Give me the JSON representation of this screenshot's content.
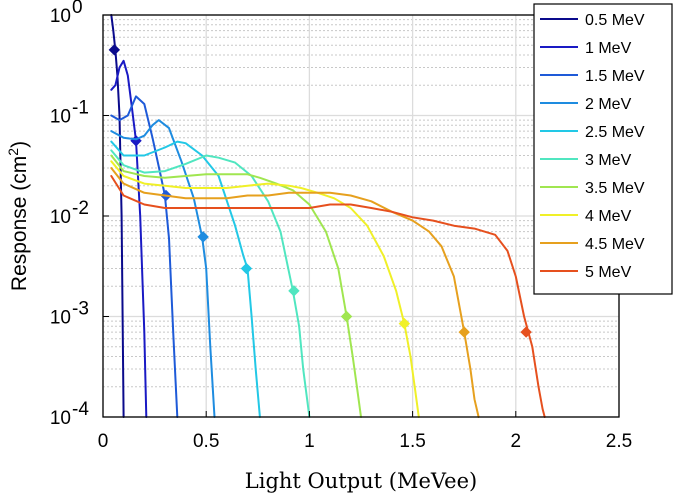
{
  "chart_data": {
    "type": "line",
    "title": "",
    "xlabel": "Light Output (MeVee)",
    "ylabel_main": "Response (cm",
    "ylabel_sup": "2",
    "ylabel_close": ")",
    "xlim": [
      0,
      2.5
    ],
    "ylim": [
      0.0001,
      1
    ],
    "y_scale": "log",
    "grid": true,
    "minor_grid": true,
    "legend_position": "top-right",
    "x_ticks": [
      {
        "value": 0,
        "label": "0"
      },
      {
        "value": 0.5,
        "label": "0.5"
      },
      {
        "value": 1,
        "label": "1"
      },
      {
        "value": 1.5,
        "label": "1.5"
      },
      {
        "value": 2,
        "label": "2"
      },
      {
        "value": 2.5,
        "label": "2.5"
      }
    ],
    "y_ticks": [
      {
        "value": 1,
        "base": "10",
        "exp": "0"
      },
      {
        "value": 0.1,
        "base": "10",
        "exp": "-1"
      },
      {
        "value": 0.01,
        "base": "10",
        "exp": "-2"
      },
      {
        "value": 0.001,
        "base": "10",
        "exp": "-3"
      },
      {
        "value": 0.0001,
        "base": "10",
        "exp": "-4"
      }
    ],
    "series": [
      {
        "name": "0.5 MeV",
        "color": "#0a0a8c",
        "x": [
          0.04,
          0.05,
          0.06,
          0.07,
          0.08,
          0.09,
          0.1
        ],
        "y": [
          1.0,
          0.7,
          0.44,
          0.25,
          0.1,
          0.01,
          0.0001
        ],
        "marker": [
          0.055,
          0.45
        ]
      },
      {
        "name": "1 MeV",
        "color": "#1a1ac4",
        "x": [
          0.04,
          0.06,
          0.08,
          0.1,
          0.12,
          0.14,
          0.16,
          0.18,
          0.2,
          0.21
        ],
        "y": [
          0.18,
          0.2,
          0.3,
          0.35,
          0.25,
          0.12,
          0.056,
          0.01,
          0.0007,
          0.0001
        ],
        "marker": [
          0.16,
          0.056
        ]
      },
      {
        "name": "1.5 MeV",
        "color": "#1e5ad8",
        "x": [
          0.04,
          0.08,
          0.12,
          0.16,
          0.2,
          0.24,
          0.28,
          0.3,
          0.32,
          0.34,
          0.36
        ],
        "y": [
          0.1,
          0.09,
          0.1,
          0.155,
          0.13,
          0.06,
          0.025,
          0.016,
          0.006,
          0.0007,
          0.0001
        ],
        "marker": [
          0.305,
          0.016
        ]
      },
      {
        "name": "2 MeV",
        "color": "#1e8ce0",
        "x": [
          0.04,
          0.1,
          0.16,
          0.2,
          0.24,
          0.27,
          0.32,
          0.38,
          0.44,
          0.48,
          0.5,
          0.52,
          0.54
        ],
        "y": [
          0.07,
          0.06,
          0.058,
          0.063,
          0.08,
          0.09,
          0.075,
          0.035,
          0.015,
          0.0062,
          0.003,
          0.0005,
          0.0001
        ],
        "marker": [
          0.485,
          0.0062
        ]
      },
      {
        "name": "2.5 MeV",
        "color": "#22c8e6",
        "x": [
          0.04,
          0.1,
          0.2,
          0.3,
          0.36,
          0.4,
          0.48,
          0.56,
          0.64,
          0.68,
          0.7,
          0.72,
          0.74,
          0.76
        ],
        "y": [
          0.055,
          0.04,
          0.04,
          0.048,
          0.055,
          0.053,
          0.04,
          0.025,
          0.008,
          0.004,
          0.003,
          0.001,
          0.0003,
          0.0001
        ],
        "marker": [
          0.695,
          0.003
        ]
      },
      {
        "name": "3 MeV",
        "color": "#50e6c0",
        "x": [
          0.04,
          0.1,
          0.2,
          0.3,
          0.4,
          0.5,
          0.56,
          0.64,
          0.72,
          0.8,
          0.86,
          0.92,
          0.95,
          0.97,
          1.0
        ],
        "y": [
          0.045,
          0.032,
          0.027,
          0.028,
          0.033,
          0.04,
          0.038,
          0.034,
          0.025,
          0.014,
          0.007,
          0.0018,
          0.0008,
          0.0003,
          0.0001
        ],
        "marker": [
          0.925,
          0.0018
        ]
      },
      {
        "name": "3.5 MeV",
        "color": "#a0e650",
        "x": [
          0.04,
          0.1,
          0.2,
          0.3,
          0.4,
          0.5,
          0.6,
          0.7,
          0.76,
          0.84,
          0.92,
          1.0,
          1.08,
          1.14,
          1.18,
          1.21,
          1.23,
          1.25
        ],
        "y": [
          0.04,
          0.028,
          0.025,
          0.024,
          0.025,
          0.026,
          0.026,
          0.026,
          0.024,
          0.021,
          0.018,
          0.013,
          0.007,
          0.003,
          0.001,
          0.0004,
          0.0002,
          0.0001
        ],
        "marker": [
          1.18,
          0.001
        ]
      },
      {
        "name": "4 MeV",
        "color": "#f0f028",
        "x": [
          0.04,
          0.1,
          0.2,
          0.3,
          0.4,
          0.5,
          0.6,
          0.7,
          0.8,
          0.9,
          0.96,
          1.04,
          1.12,
          1.2,
          1.28,
          1.36,
          1.42,
          1.46,
          1.49,
          1.51,
          1.53
        ],
        "y": [
          0.035,
          0.025,
          0.021,
          0.02,
          0.019,
          0.019,
          0.019,
          0.02,
          0.021,
          0.02,
          0.019,
          0.017,
          0.015,
          0.012,
          0.008,
          0.004,
          0.0018,
          0.00085,
          0.0004,
          0.0002,
          0.0001
        ],
        "marker": [
          1.46,
          0.00085
        ]
      },
      {
        "name": "4.5 MeV",
        "color": "#e6a01e",
        "x": [
          0.04,
          0.1,
          0.2,
          0.3,
          0.4,
          0.5,
          0.6,
          0.7,
          0.8,
          0.9,
          1.0,
          1.1,
          1.2,
          1.3,
          1.4,
          1.5,
          1.58,
          1.64,
          1.7,
          1.75,
          1.78,
          1.8,
          1.82
        ],
        "y": [
          0.03,
          0.021,
          0.017,
          0.016,
          0.015,
          0.015,
          0.015,
          0.016,
          0.016,
          0.017,
          0.017,
          0.017,
          0.016,
          0.014,
          0.011,
          0.009,
          0.007,
          0.005,
          0.0025,
          0.0007,
          0.0003,
          0.00015,
          0.0001
        ],
        "marker": [
          1.75,
          0.0007
        ]
      },
      {
        "name": "5 MeV",
        "color": "#e6501e",
        "x": [
          0.04,
          0.1,
          0.2,
          0.3,
          0.4,
          0.5,
          0.6,
          0.7,
          0.8,
          0.9,
          1.0,
          1.1,
          1.2,
          1.3,
          1.4,
          1.5,
          1.6,
          1.7,
          1.8,
          1.9,
          1.96,
          2.0,
          2.04,
          2.08,
          2.11,
          2.13,
          2.14
        ],
        "y": [
          0.025,
          0.016,
          0.013,
          0.012,
          0.012,
          0.012,
          0.012,
          0.012,
          0.012,
          0.012,
          0.012,
          0.013,
          0.013,
          0.012,
          0.011,
          0.0097,
          0.009,
          0.008,
          0.0075,
          0.0065,
          0.0045,
          0.0025,
          0.001,
          0.0005,
          0.0002,
          0.00012,
          0.0001
        ],
        "marker": [
          2.05,
          0.0007
        ]
      }
    ]
  }
}
